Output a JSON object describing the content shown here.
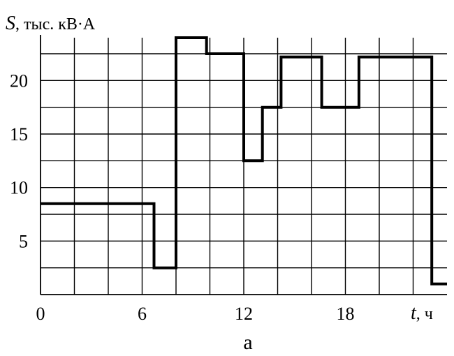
{
  "chart_data": {
    "type": "line",
    "step": true,
    "title": "",
    "caption": "а",
    "ylabel": {
      "var": "S",
      "rest": ", тыс. кВ·А"
    },
    "xlabel": {
      "var": "t",
      "rest": ", ч"
    },
    "xlim": [
      0,
      24
    ],
    "ylim": [
      0,
      24
    ],
    "grid": true,
    "grid_step_x": 2,
    "grid_step_y": 2.5,
    "x_ticks": [
      {
        "value": 0,
        "label": "0"
      },
      {
        "value": 6,
        "label": "6"
      },
      {
        "value": 12,
        "label": "12"
      },
      {
        "value": 18,
        "label": "18"
      }
    ],
    "y_ticks": [
      {
        "value": 5,
        "label": "5"
      },
      {
        "value": 10,
        "label": "10"
      },
      {
        "value": 15,
        "label": "15"
      },
      {
        "value": 20,
        "label": "20"
      }
    ],
    "series": [
      {
        "x": [
          0,
          6.7,
          6.7,
          8.0,
          8.0,
          9.8,
          9.8,
          12.0,
          12.0,
          13.1,
          13.1,
          14.2,
          14.2,
          16.6,
          16.6,
          18.8,
          18.8,
          23.1,
          23.1,
          24
        ],
        "y": [
          8.5,
          8.5,
          2.5,
          2.5,
          24.0,
          24.0,
          22.5,
          22.5,
          12.5,
          12.5,
          17.5,
          17.5,
          22.2,
          22.2,
          17.5,
          17.5,
          22.2,
          22.2,
          1.0,
          1.0
        ]
      }
    ]
  }
}
